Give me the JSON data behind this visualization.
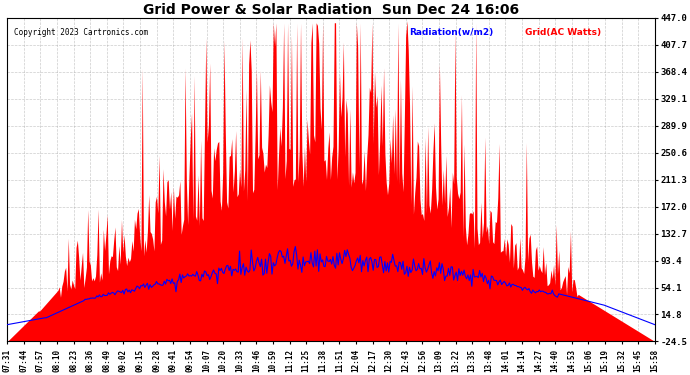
{
  "title": "Grid Power & Solar Radiation  Sun Dec 24 16:06",
  "copyright": "Copyright 2023 Cartronics.com",
  "legend_radiation": "Radiation(w/m2)",
  "legend_grid": "Grid(AC Watts)",
  "yticks": [
    447.0,
    407.7,
    368.4,
    329.1,
    289.9,
    250.6,
    211.3,
    172.0,
    132.7,
    93.4,
    54.1,
    14.8,
    -24.5
  ],
  "ylim": [
    -24.5,
    447.0
  ],
  "background_color": "#ffffff",
  "grid_color": "#aaaaaa",
  "radiation_color": "#0000ff",
  "fill_color": "#ff0000",
  "title_color": "#000000",
  "legend_rad_color": "#0000ff",
  "legend_grid_color": "#ff0000",
  "copyright_color": "#000000",
  "xtick_labels": [
    "07:31",
    "07:44",
    "07:57",
    "08:10",
    "08:23",
    "08:36",
    "08:49",
    "09:02",
    "09:15",
    "09:28",
    "09:41",
    "09:54",
    "10:07",
    "10:20",
    "10:33",
    "10:46",
    "10:59",
    "11:12",
    "11:25",
    "11:38",
    "11:51",
    "12:04",
    "12:17",
    "12:30",
    "12:43",
    "12:56",
    "13:09",
    "13:22",
    "13:35",
    "13:48",
    "14:01",
    "14:14",
    "14:27",
    "14:40",
    "14:53",
    "15:06",
    "15:19",
    "15:32",
    "15:45",
    "15:58"
  ],
  "n_points": 500
}
